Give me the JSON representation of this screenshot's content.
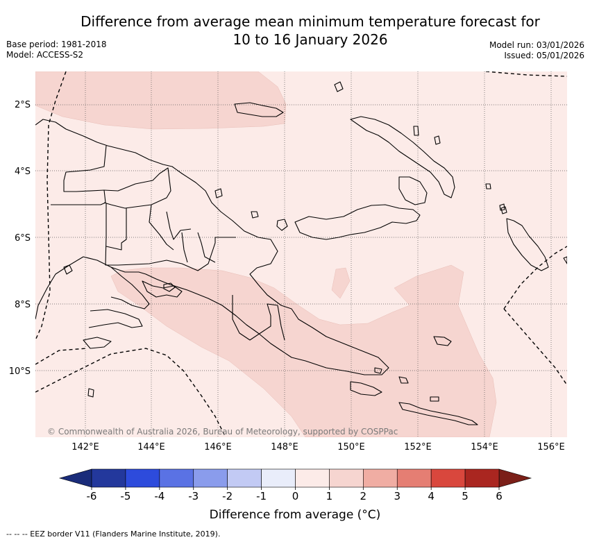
{
  "title": {
    "line1": "Difference from average mean minimum temperature forecast for",
    "line2": "10 to 16 January 2026"
  },
  "meta": {
    "base_period": "Base period: 1981-2018",
    "model": "Model: ACCESS-S2",
    "model_run": "Model run: 03/01/2026",
    "issued": "Issued: 05/01/2026"
  },
  "map": {
    "lat_labels": [
      "2°S",
      "4°S",
      "6°S",
      "8°S",
      "10°S"
    ],
    "lon_labels": [
      "142°E",
      "144°E",
      "146°E",
      "148°E",
      "150°E",
      "152°E",
      "154°E",
      "156°E"
    ],
    "copyright": "© Commonwealth of Australia 2026, Bureau of Meteorology, supported by COSPPac",
    "colors": {
      "anomaly_0_1": "#fcebe8",
      "anomaly_1_2": "#f6d5d0",
      "land_outline": "#000000",
      "grid": "#555555"
    }
  },
  "colorbar": {
    "title": "Difference from average (°C)",
    "ticks": [
      "-6",
      "-5",
      "-4",
      "-3",
      "-2",
      "-1",
      "0",
      "1",
      "2",
      "3",
      "4",
      "5",
      "6"
    ],
    "colors": [
      "#23389c",
      "#2d4bdc",
      "#5a72e4",
      "#8a9cec",
      "#c2caf4",
      "#e9edfa",
      "#fcebe8",
      "#f6d5d0",
      "#f0ada3",
      "#e57e73",
      "#d9473d",
      "#aa2620"
    ],
    "under_color": "#1a2c7a",
    "over_color": "#7b1f18"
  },
  "footnote": "-- -- -- EEZ border V11 (Flanders Marine Institute, 2019)."
}
